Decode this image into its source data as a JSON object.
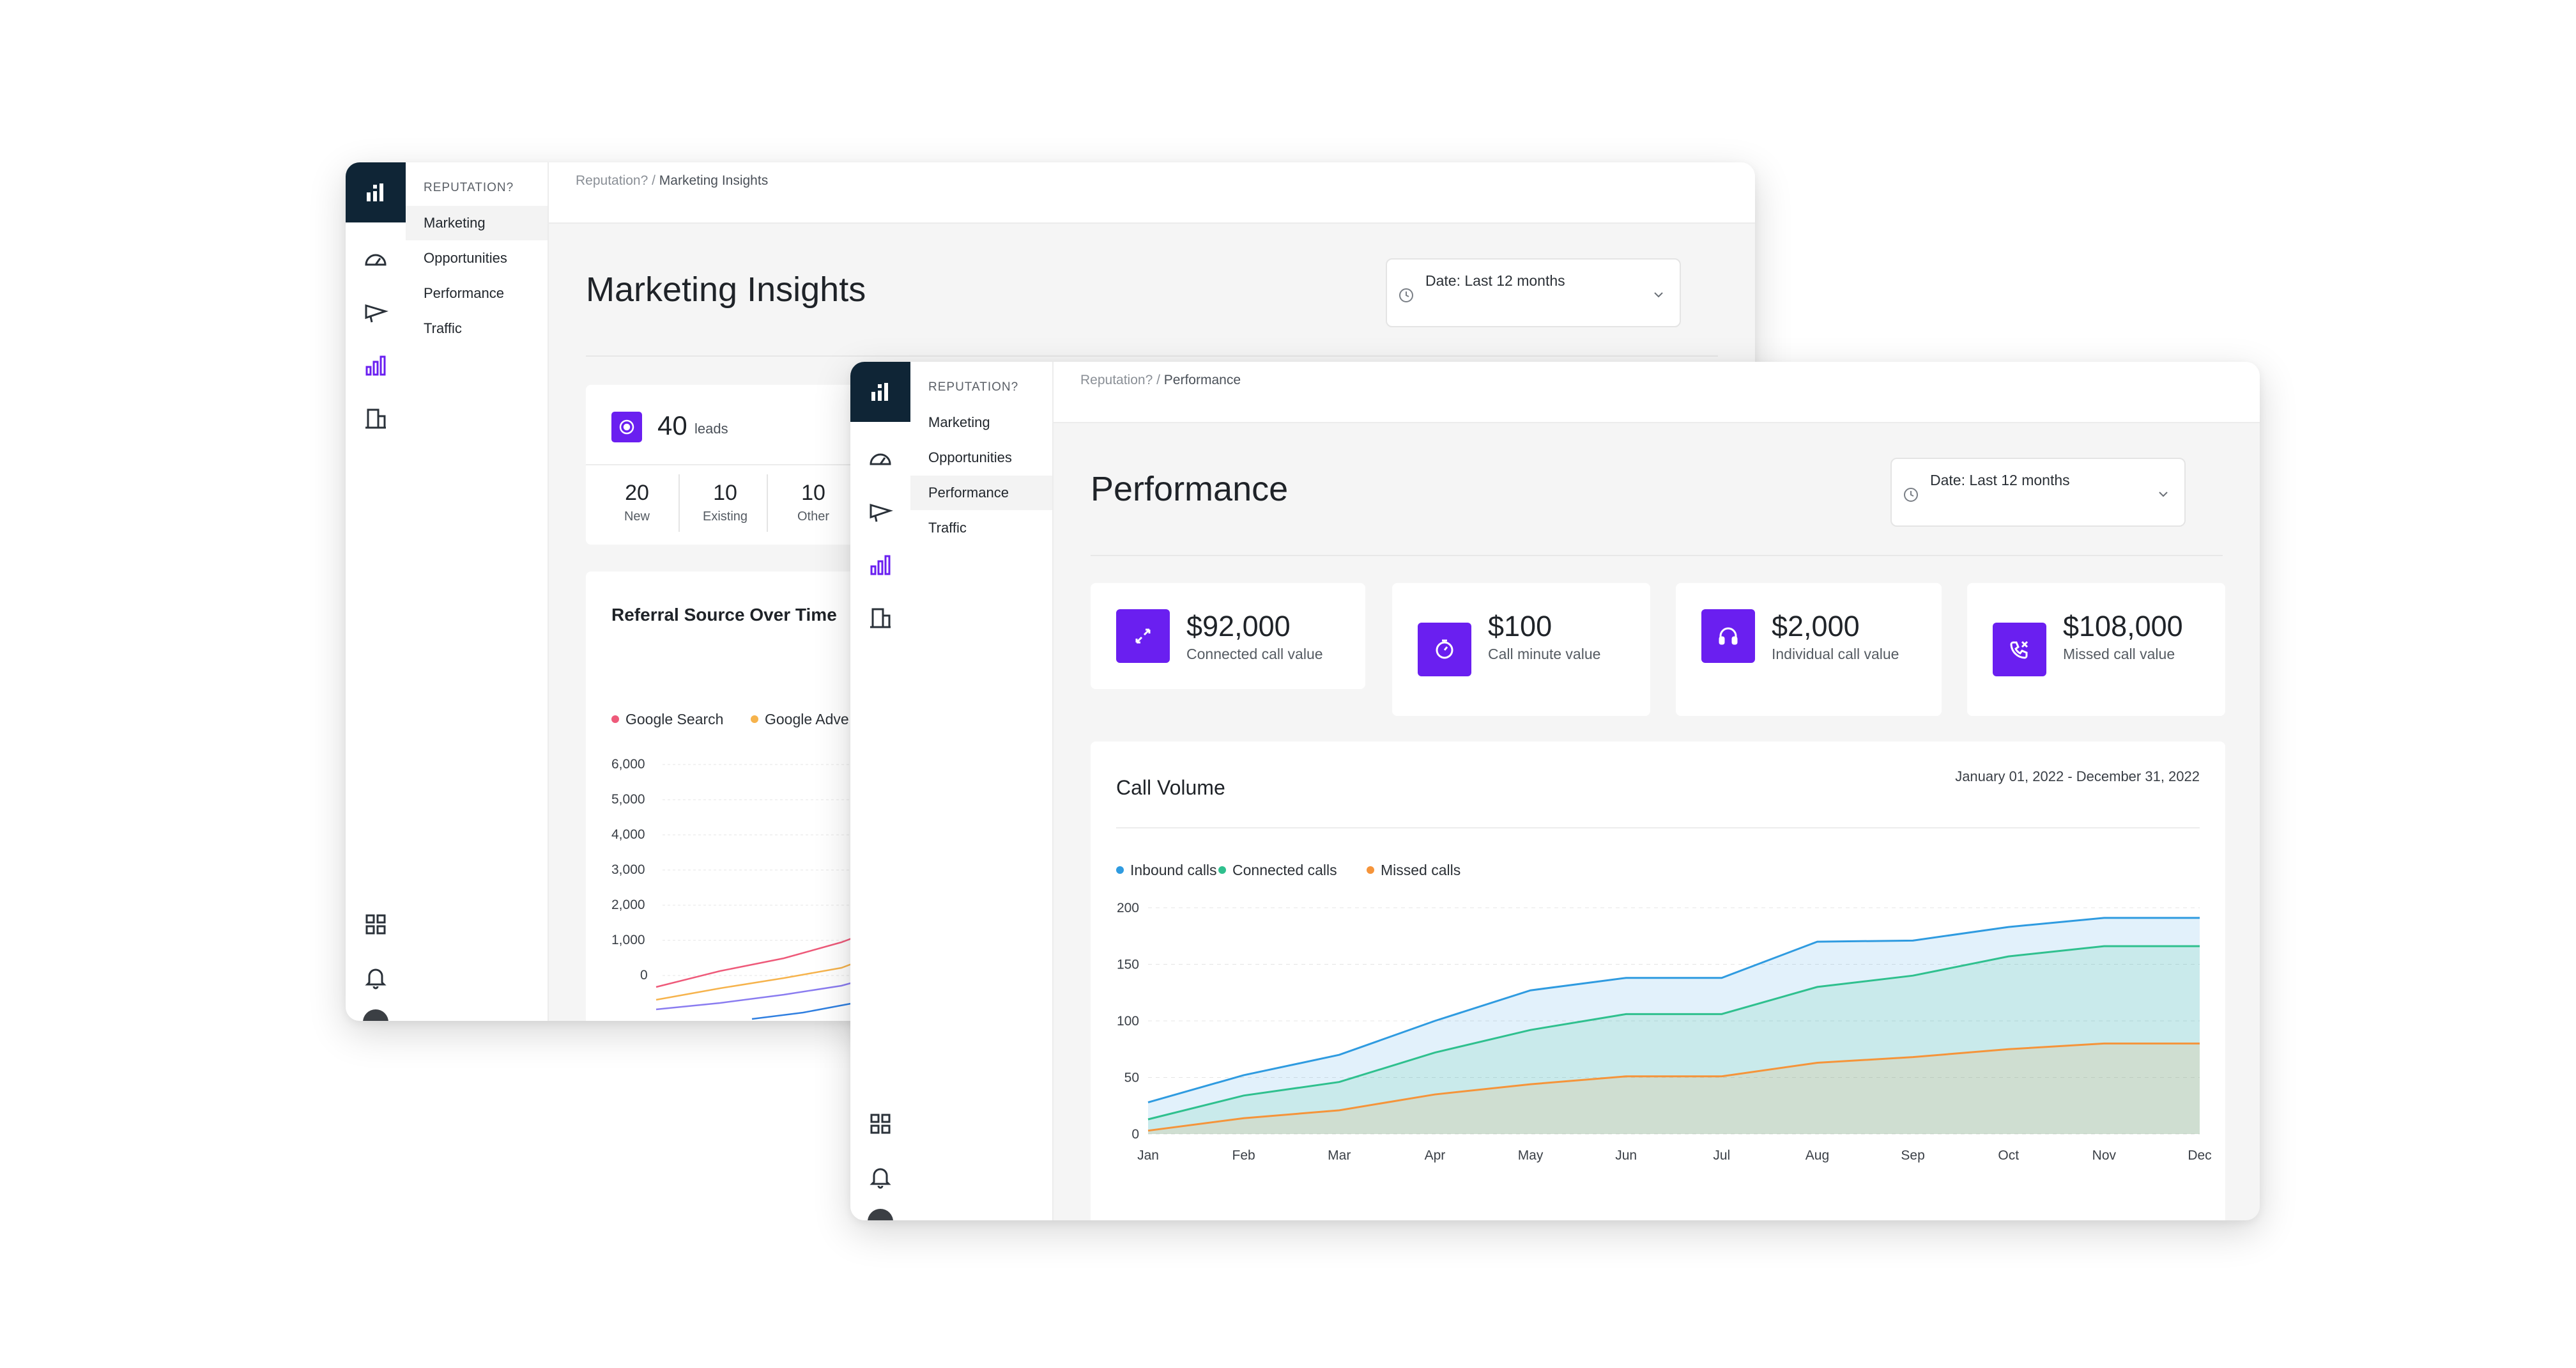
{
  "nav": {
    "section": "REPUTATION?",
    "items": [
      "Marketing",
      "Opportunities",
      "Performance",
      "Traffic"
    ]
  },
  "rail_icons": [
    "logo-icon",
    "dashboard-gauge-icon",
    "megaphone-icon",
    "bar-chart-icon",
    "building-icon",
    "grid-icon",
    "bell-icon",
    "avatar"
  ],
  "back": {
    "breadcrumb_parent": "Reputation?",
    "breadcrumb_sep": " / ",
    "breadcrumb_current": "Marketing Insights",
    "title": "Marketing Insights",
    "date_filter": "Date: Last 12 months",
    "leads": {
      "count": "40",
      "label": "leads"
    },
    "lead_breakdown": [
      {
        "value": "20",
        "label": "New"
      },
      {
        "value": "10",
        "label": "Existing"
      },
      {
        "value": "10",
        "label": "Other"
      }
    ],
    "referral_title": "Referral Source Over Time",
    "referral_legend": [
      {
        "name": "Google Search",
        "color": "#ee5a7a"
      },
      {
        "name": "Google Adve",
        "color": "#f6b34c"
      }
    ],
    "referral_y_ticks": [
      "6,000",
      "5,000",
      "4,000",
      "3,000",
      "2,000",
      "1,000",
      "0"
    ]
  },
  "front": {
    "breadcrumb_parent": "Reputation?",
    "breadcrumb_sep": " / ",
    "breadcrumb_current": "Performance",
    "title": "Performance",
    "date_filter": "Date: Last 12 months",
    "stats": [
      {
        "value": "$92,000",
        "label": "Connected call value",
        "icon": "arrows-connect-icon"
      },
      {
        "value": "$100",
        "label": "Call minute value",
        "icon": "timer-icon"
      },
      {
        "value": "$2,000",
        "label": "Individual call value",
        "icon": "headset-icon"
      },
      {
        "value": "$108,000",
        "label": "Missed call value",
        "icon": "missed-call-icon"
      }
    ],
    "call_volume": {
      "title": "Call Volume",
      "range": "January 01, 2022 - December 31, 2022"
    }
  },
  "colors": {
    "accent": "#6a1ff0",
    "logo_bg": "#0f2536",
    "inbound": "#2f9be0",
    "connected": "#2fc08e",
    "missed": "#f5943a"
  },
  "chart_data": {
    "type": "area",
    "title": "Call Volume",
    "x": [
      "Jan",
      "Feb",
      "Mar",
      "Apr",
      "May",
      "Jun",
      "Jul",
      "Aug",
      "Sep",
      "Oct",
      "Nov",
      "Dec"
    ],
    "y_ticks": [
      0,
      50,
      100,
      150,
      200
    ],
    "ylim": [
      0,
      200
    ],
    "grid": true,
    "legend_position": "top-left",
    "series": [
      {
        "name": "Inbound calls",
        "color": "#2f9be0",
        "values": [
          28,
          52,
          70,
          100,
          127,
          138,
          138,
          170,
          171,
          183,
          191,
          191
        ]
      },
      {
        "name": "Connected calls",
        "color": "#2fc08e",
        "values": [
          13,
          34,
          46,
          72,
          92,
          106,
          106,
          130,
          140,
          157,
          166,
          166
        ]
      },
      {
        "name": "Missed calls",
        "color": "#f5943a",
        "values": [
          3,
          14,
          21,
          35,
          44,
          51,
          51,
          63,
          68,
          75,
          80,
          80
        ]
      }
    ]
  }
}
